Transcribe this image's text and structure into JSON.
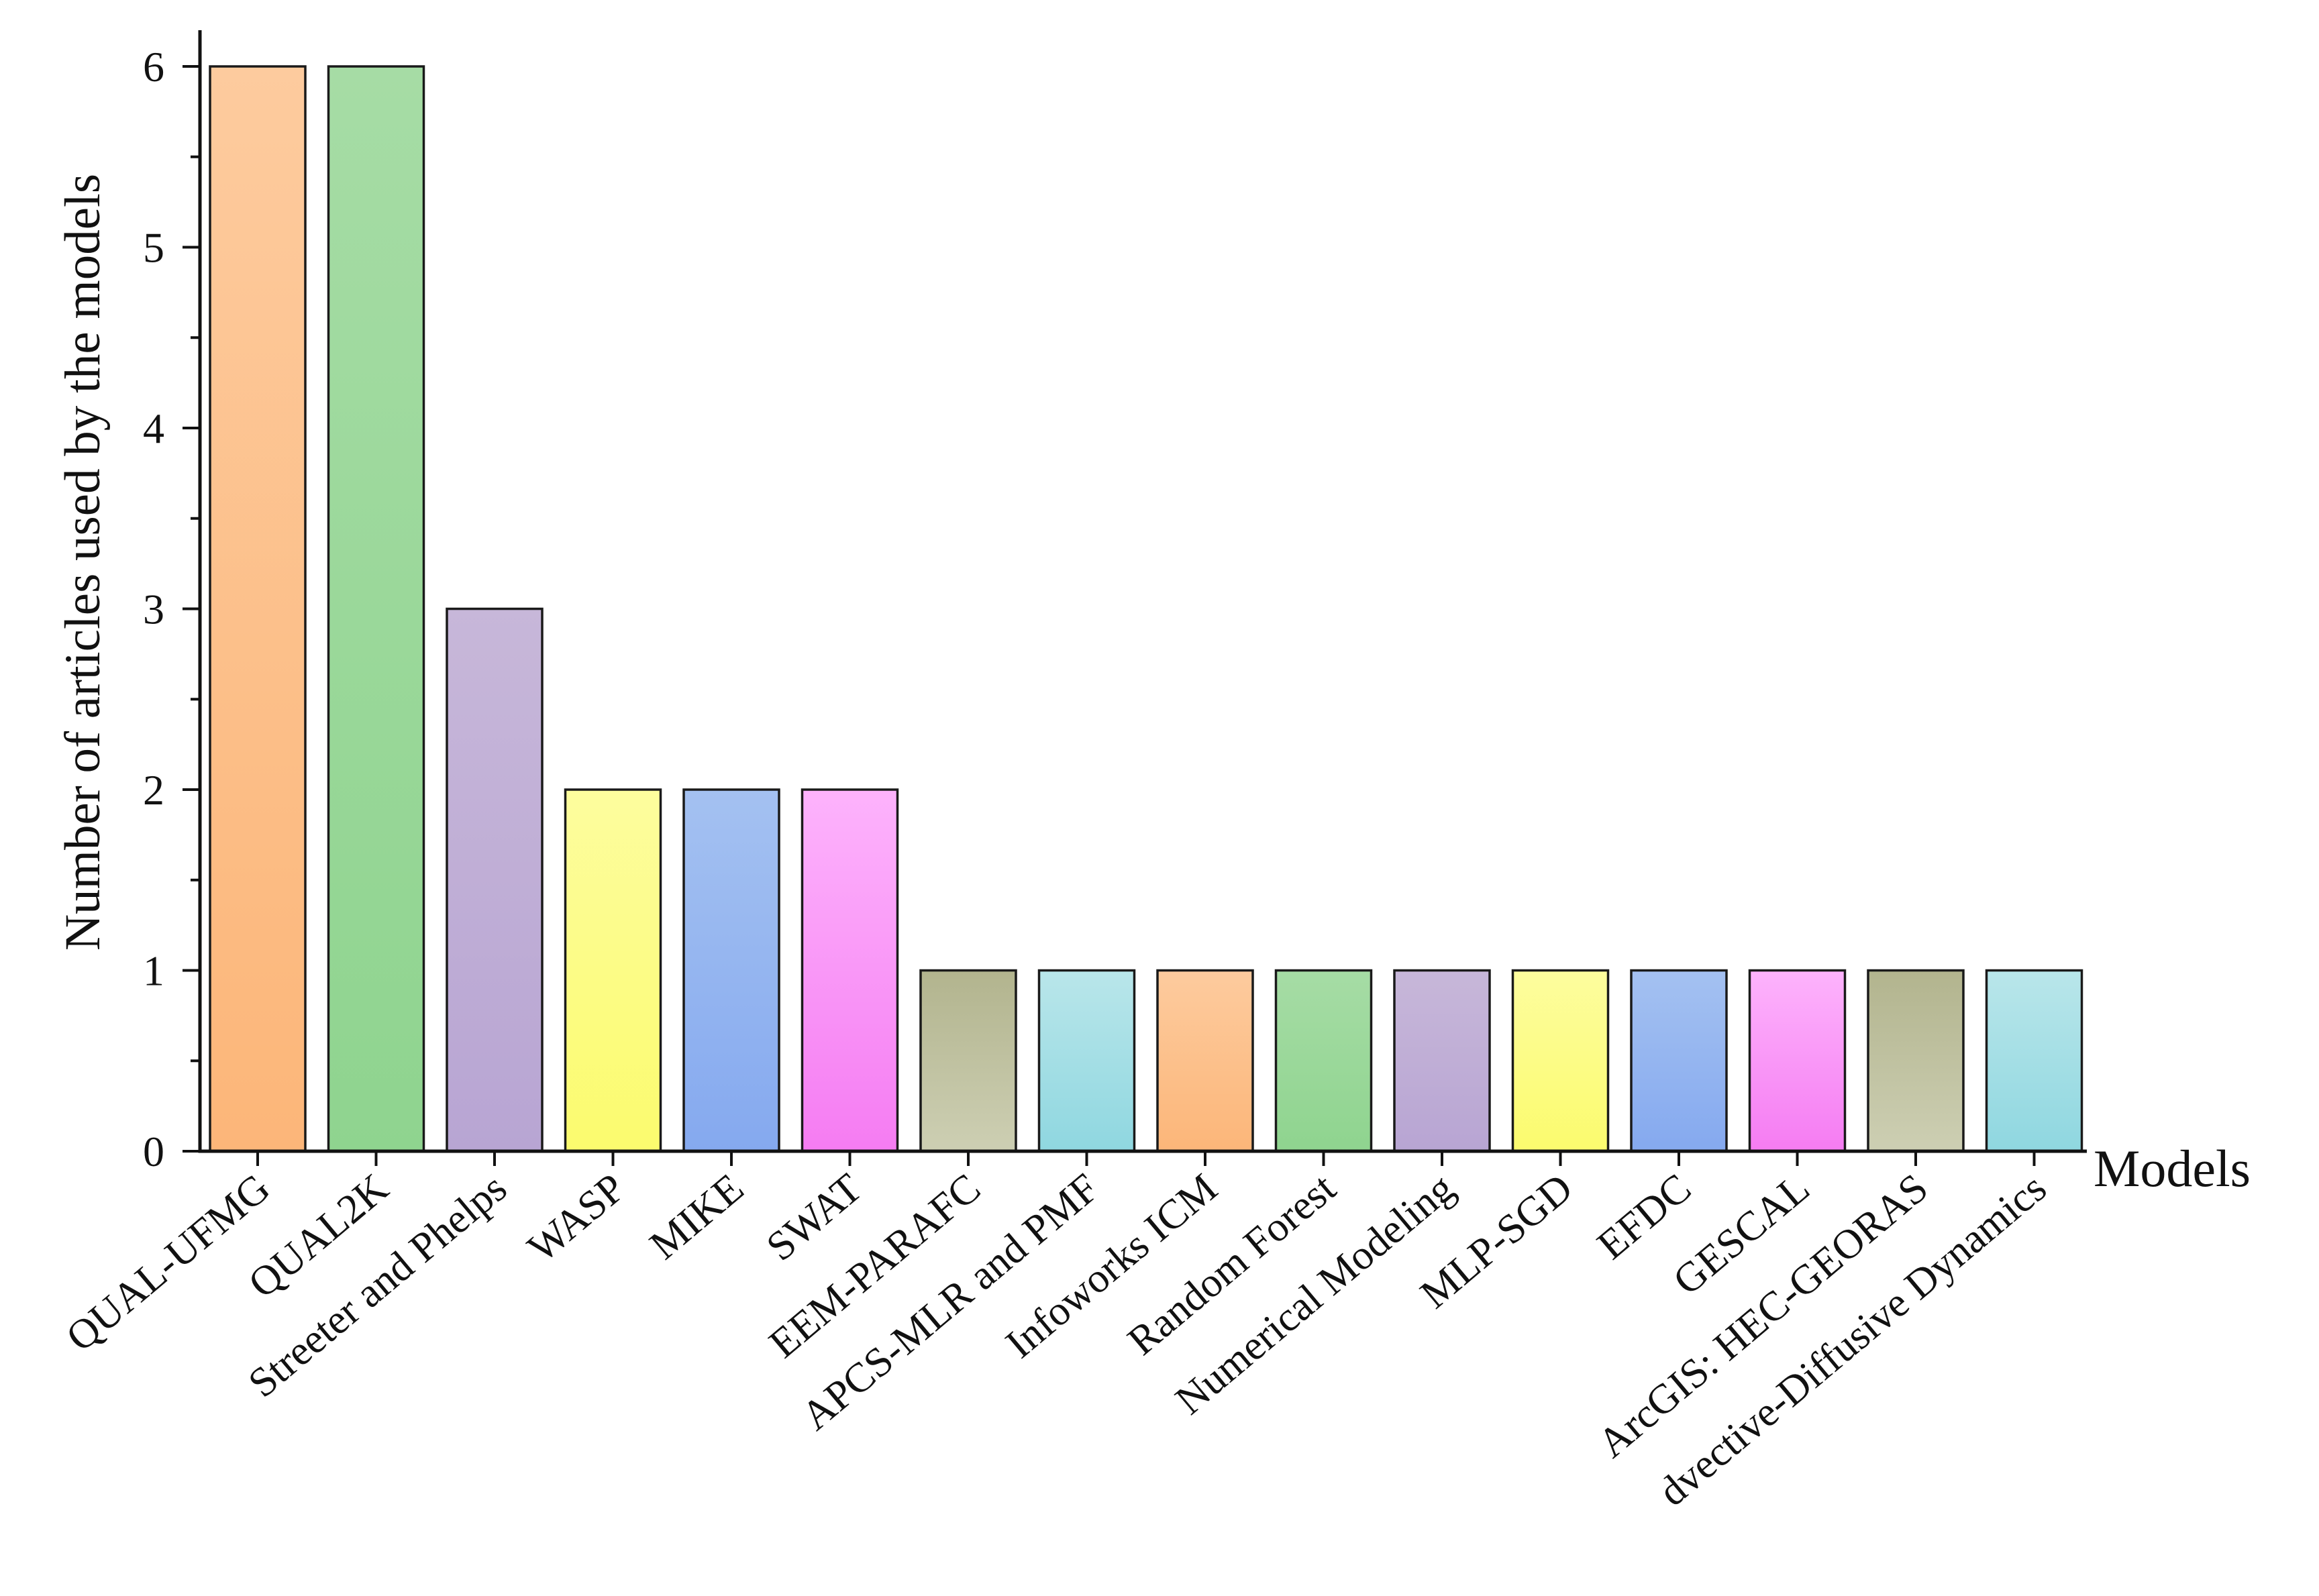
{
  "chart_data": {
    "type": "bar",
    "title": "",
    "xlabel": "Models",
    "ylabel": "Number of articles used by the models",
    "ylim": [
      0,
      6.2
    ],
    "yticks": [
      0,
      1,
      2,
      3,
      4,
      5,
      6
    ],
    "grid": false,
    "legend": "none",
    "categories": [
      "QUAL-UFMG",
      "QUAL2K",
      "Streeter and Phelps",
      "WASP",
      "MIKE",
      "SWAT",
      "EEM-PARAFC",
      "APCS-MLR and PMF",
      "Infoworks ICM",
      "Random Forest",
      "Numerical Modeling",
      "MLP-SGD",
      "EFDC",
      "GESCAL",
      "ArcGIS: HEC-GEORAS",
      "dvective-Diffusive Dynamics"
    ],
    "values": [
      6,
      6,
      3,
      2,
      2,
      2,
      1,
      1,
      1,
      1,
      1,
      1,
      1,
      1,
      1,
      1
    ],
    "colors": [
      [
        "#fdcb9e",
        "#fcb679"
      ],
      [
        "#a6dca5",
        "#8fd48f"
      ],
      [
        "#c7b7d9",
        "#b8a5d3"
      ],
      [
        "#fdfd9e",
        "#fbfb6e"
      ],
      [
        "#a4c1f1",
        "#85a9ef"
      ],
      [
        "#fdb3fc",
        "#f57cf2"
      ],
      [
        "#b2b48e",
        "#cdcfb3"
      ],
      [
        "#b9e6ea",
        "#8fd7e0"
      ],
      [
        "#fdcb9e",
        "#fcb679"
      ],
      [
        "#a6dca5",
        "#8fd48f"
      ],
      [
        "#c7b7d9",
        "#b8a5d3"
      ],
      [
        "#fdfd9e",
        "#fbfb6e"
      ],
      [
        "#a4c1f1",
        "#85a9ef"
      ],
      [
        "#fdb3fc",
        "#f57cf2"
      ],
      [
        "#b2b48e",
        "#cdcfb3"
      ],
      [
        "#b9e6ea",
        "#8fd7e0"
      ]
    ]
  }
}
